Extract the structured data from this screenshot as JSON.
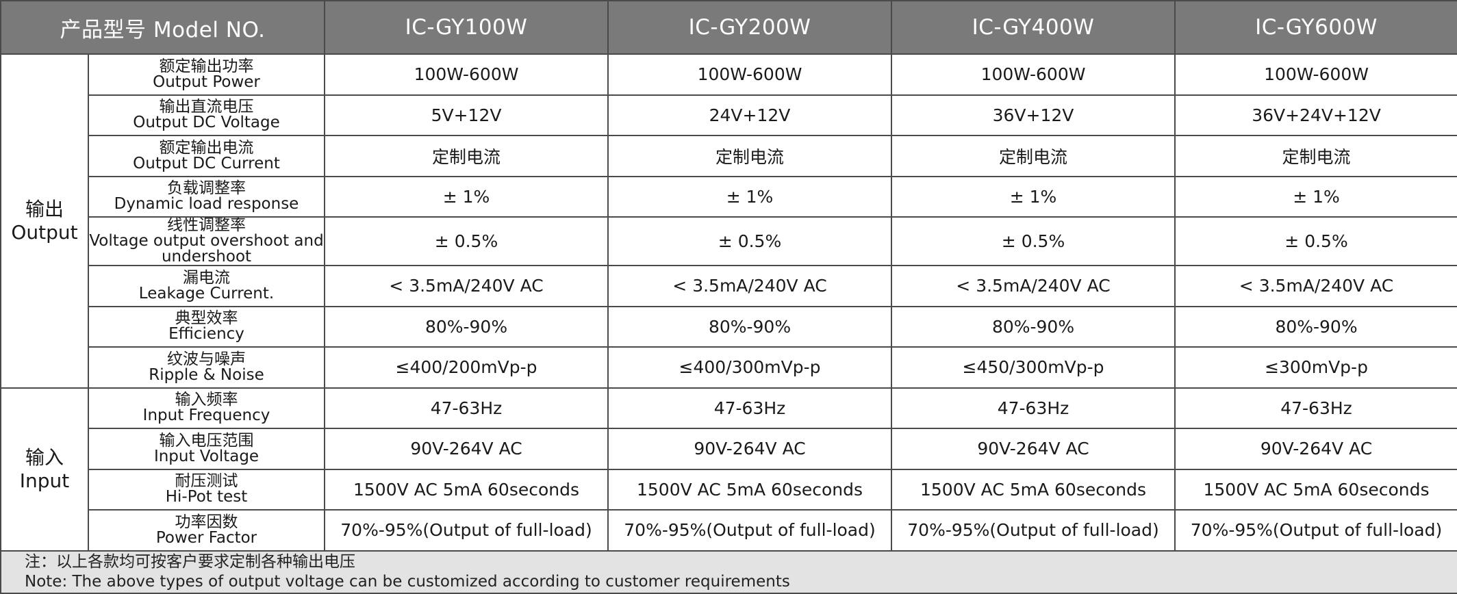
{
  "header": {
    "model_label": "产品型号 Model NO.",
    "models": [
      "IC-GY100W",
      "IC-GY200W",
      "IC-GY400W",
      "IC-GY600W"
    ]
  },
  "sections": [
    {
      "cn": "输出",
      "en": "Output",
      "rows": [
        {
          "cn": "额定输出功率",
          "en": "Output Power",
          "values": [
            "100W-600W",
            "100W-600W",
            "100W-600W",
            "100W-600W"
          ]
        },
        {
          "cn": "输出直流电压",
          "en": "Output DC Voltage",
          "values": [
            "5V+12V",
            "24V+12V",
            "36V+12V",
            "36V+24V+12V"
          ]
        },
        {
          "cn": "额定输出电流",
          "en": "Output DC Current",
          "values": [
            "定制电流",
            "定制电流",
            "定制电流",
            "定制电流"
          ]
        },
        {
          "cn": "负载调整率",
          "en": "Dynamic load response",
          "values": [
            "± 1%",
            "± 1%",
            "± 1%",
            "± 1%"
          ]
        },
        {
          "cn": "线性调整率",
          "en": "Voltage output overshoot and undershoot",
          "values": [
            "± 0.5%",
            "± 0.5%",
            "± 0.5%",
            "± 0.5%"
          ]
        },
        {
          "cn": "漏电流",
          "en": "Leakage Current.",
          "values": [
            "< 3.5mA/240V AC",
            "< 3.5mA/240V AC",
            "< 3.5mA/240V AC",
            "< 3.5mA/240V AC"
          ]
        },
        {
          "cn": "典型效率",
          "en": "Efficiency",
          "values": [
            "80%-90%",
            "80%-90%",
            "80%-90%",
            "80%-90%"
          ]
        },
        {
          "cn": "纹波与噪声",
          "en": "Ripple & Noise",
          "values": [
            "≤400/200mVp-p",
            "≤400/300mVp-p",
            "≤450/300mVp-p",
            "≤300mVp-p"
          ]
        }
      ]
    },
    {
      "cn": "输入",
      "en": "Input",
      "rows": [
        {
          "cn": "输入频率",
          "en": "Input Frequency",
          "values": [
            "47-63Hz",
            "47-63Hz",
            "47-63Hz",
            "47-63Hz"
          ]
        },
        {
          "cn": "输入电压范围",
          "en": "Input Voltage",
          "values": [
            "90V-264V AC",
            "90V-264V AC",
            "90V-264V AC",
            "90V-264V AC"
          ]
        },
        {
          "cn": "耐压测试",
          "en": "Hi-Pot test",
          "values": [
            "1500V AC 5mA 60seconds",
            "1500V AC 5mA 60seconds",
            "1500V AC 5mA 60seconds",
            "1500V AC 5mA 60seconds"
          ]
        },
        {
          "cn": "功率因数",
          "en": "Power Factor",
          "values": [
            "70%-95%(Output of full-load)",
            "70%-95%(Output of full-load)",
            "70%-95%(Output of full-load)",
            "70%-95%(Output of full-load)"
          ]
        }
      ]
    }
  ],
  "note": {
    "cn": "注：以上各款均可按客户要求定制各种输出电压",
    "en": "Note: The above types of output voltage can be customized according to customer requirements"
  },
  "colors": {
    "header_bg": "#7a7a7a",
    "header_text": "#ffffff",
    "note_bg": "#e3e3e3",
    "border": "#4a4a4a"
  }
}
